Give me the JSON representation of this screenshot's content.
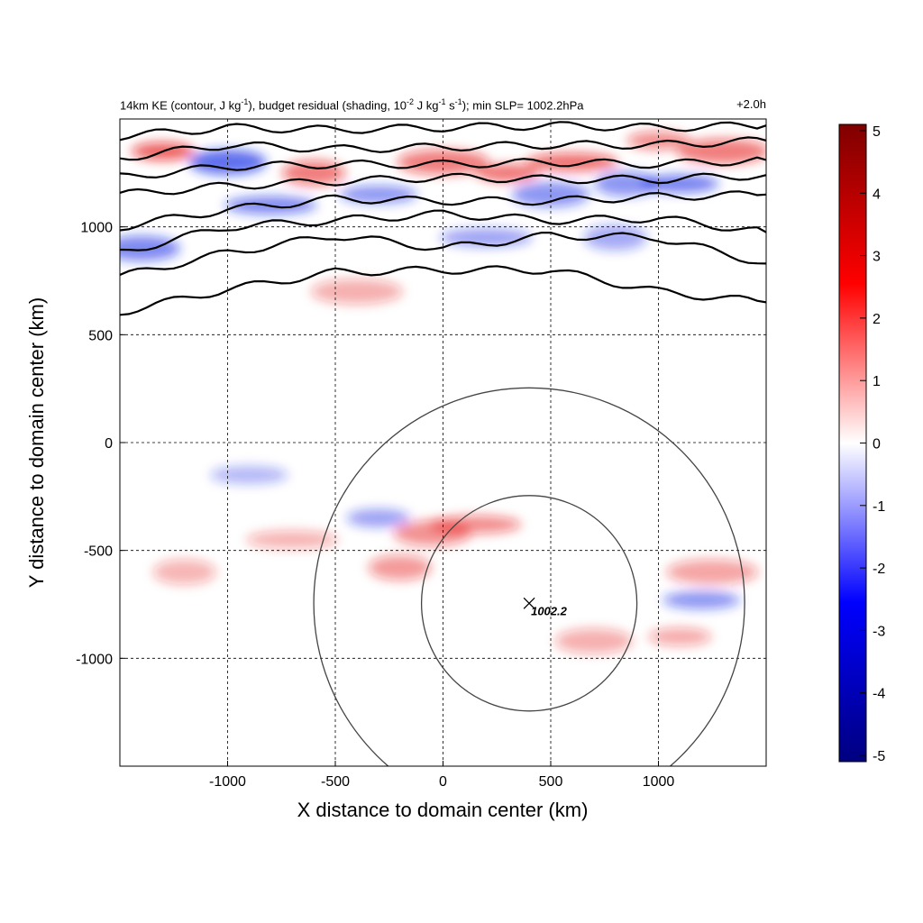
{
  "chart_data": {
    "type": "heatmap",
    "title_parts": {
      "a": "14km KE (contour, J kg",
      "a_exp": "-1",
      "b": "), budget residual (shading, 10",
      "b_exp": "-2",
      "c": " J kg",
      "c_exp": "-1",
      "d": " s",
      "d_exp": "-1",
      "e": "); min SLP= 1002.2hPa"
    },
    "time_label": "+2.0h",
    "xlabel": "X distance to domain center (km)",
    "ylabel": "Y distance to domain center (km)",
    "xlim": [
      -1500,
      1500
    ],
    "ylim": [
      -1500,
      1500
    ],
    "xticks": [
      -1000,
      -500,
      0,
      500,
      1000
    ],
    "yticks": [
      1000,
      500,
      0,
      -500,
      -1000
    ],
    "xtick_labels": [
      "-1000",
      "-500",
      "0",
      "500",
      "1000"
    ],
    "ytick_labels": [
      "1000",
      "500",
      "0",
      "-500",
      "-1000"
    ],
    "grid": true,
    "colorbar": {
      "min": -5,
      "max": 5,
      "ticks": [
        5,
        4,
        3,
        2,
        1,
        0,
        -1,
        -2,
        -3,
        -4,
        -5
      ],
      "tick_labels": [
        "5",
        "4",
        "3",
        "2",
        "1",
        "0",
        "-1",
        "-2",
        "-3",
        "-4",
        "-5"
      ],
      "colors": [
        "#00007f",
        "#0000ff",
        "#ffffff",
        "#ff0000",
        "#7f0000"
      ]
    },
    "center_marker": {
      "x": 400,
      "y": -745,
      "label": "1002.2"
    },
    "range_circles_km": [
      500,
      1000
    ],
    "ke_contours_y_at_x": {
      "x": [
        -1500,
        -1000,
        -500,
        0,
        500,
        1000,
        1500
      ],
      "lines": [
        [
          605,
          710,
          790,
          800,
          800,
          700,
          650
        ],
        [
          770,
          880,
          960,
          900,
          960,
          950,
          830
        ],
        [
          880,
          1000,
          1030,
          1060,
          1030,
          1040,
          975
        ],
        [
          1000,
          1080,
          1130,
          1120,
          1120,
          1140,
          1150
        ],
        [
          1150,
          1190,
          1210,
          1230,
          1220,
          1220,
          1240
        ],
        [
          1230,
          1280,
          1290,
          1290,
          1300,
          1290,
          1310
        ],
        [
          1320,
          1380,
          1360,
          1370,
          1380,
          1380,
          1400
        ],
        [
          1420,
          1460,
          1450,
          1460,
          1470,
          1460,
          1470
        ]
      ]
    },
    "residual_features": [
      {
        "x": -300,
        "y": -350,
        "value": -1.5
      },
      {
        "x": -50,
        "y": -420,
        "value": 1.8
      },
      {
        "x": 150,
        "y": -380,
        "value": 2.0
      },
      {
        "x": -200,
        "y": -580,
        "value": 1.5
      },
      {
        "x": 1200,
        "y": -730,
        "value": -2.0
      },
      {
        "x": 1250,
        "y": -600,
        "value": 1.2
      },
      {
        "x": 1100,
        "y": -900,
        "value": 1.0
      },
      {
        "x": 700,
        "y": -920,
        "value": 0.8
      },
      {
        "x": -700,
        "y": -450,
        "value": 0.7
      },
      {
        "x": -1200,
        "y": -600,
        "value": 0.6
      },
      {
        "x": -900,
        "y": -150,
        "value": -0.7
      },
      {
        "x": -400,
        "y": 700,
        "value": 0.8
      },
      {
        "x": -1300,
        "y": 1350,
        "value": 3.5
      },
      {
        "x": -1000,
        "y": 1300,
        "value": -3.5
      },
      {
        "x": -800,
        "y": 1100,
        "value": -2.5
      },
      {
        "x": -600,
        "y": 1250,
        "value": 2.5
      },
      {
        "x": -300,
        "y": 1150,
        "value": -2.0
      },
      {
        "x": 0,
        "y": 1300,
        "value": 2.5
      },
      {
        "x": 300,
        "y": 1250,
        "value": 2.8
      },
      {
        "x": 500,
        "y": 1150,
        "value": -2.0
      },
      {
        "x": 600,
        "y": 1300,
        "value": 3.0
      },
      {
        "x": 850,
        "y": 1200,
        "value": -2.0
      },
      {
        "x": 1100,
        "y": 1200,
        "value": -2.8
      },
      {
        "x": 1300,
        "y": 1350,
        "value": 2.5
      },
      {
        "x": 1000,
        "y": 1400,
        "value": 2.0
      },
      {
        "x": -1400,
        "y": 900,
        "value": -2.5
      },
      {
        "x": 200,
        "y": 950,
        "value": -1.5
      },
      {
        "x": 800,
        "y": 950,
        "value": -1.2
      }
    ]
  }
}
